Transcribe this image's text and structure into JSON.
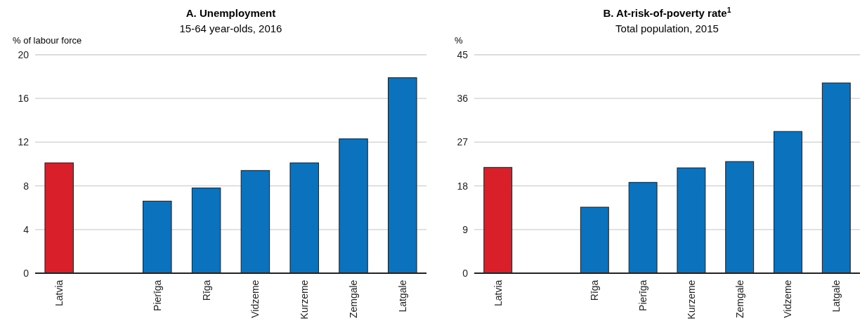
{
  "chart_data": [
    {
      "type": "bar",
      "title": "A. Unemployment",
      "subtitle": "15-64 year-olds, 2016",
      "ylabel": "% of labour force",
      "categories": [
        "Latvia",
        null,
        "Pierīga",
        "Rīga",
        "Vidzeme",
        "Kurzeme",
        "Zemgale",
        "Latgale"
      ],
      "values": [
        10.1,
        null,
        6.6,
        7.8,
        9.4,
        10.1,
        12.3,
        17.9
      ],
      "colors": [
        "#d9202a",
        null,
        "#0b72bd",
        "#0b72bd",
        "#0b72bd",
        "#0b72bd",
        "#0b72bd",
        "#0b72bd"
      ],
      "ylim": [
        0,
        20
      ],
      "yticks": [
        0,
        4,
        8,
        12,
        16,
        20
      ],
      "grid": "y"
    },
    {
      "type": "bar",
      "title": "B. At-risk-of-poverty rate$^{1}$",
      "subtitle": "Total population, 2015",
      "ylabel": "%",
      "categories": [
        "Latvia",
        null,
        "Rīga",
        "Pierīga",
        "Kurzeme",
        "Zemgale",
        "Vidzeme",
        "Latgale"
      ],
      "values": [
        21.8,
        null,
        13.6,
        18.7,
        21.7,
        23.0,
        29.2,
        39.2
      ],
      "colors": [
        "#d9202a",
        null,
        "#0b72bd",
        "#0b72bd",
        "#0b72bd",
        "#0b72bd",
        "#0b72bd",
        "#0b72bd"
      ],
      "ylim": [
        0,
        45
      ],
      "yticks": [
        0,
        9,
        18,
        27,
        36,
        45
      ],
      "grid": "y"
    }
  ]
}
